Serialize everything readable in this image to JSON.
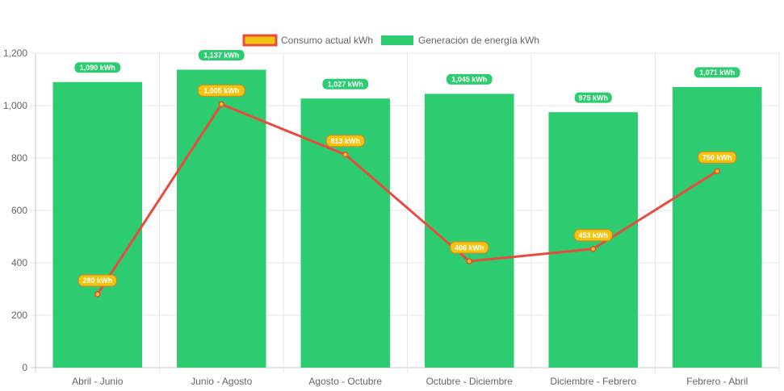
{
  "chart_data": {
    "type": "bar",
    "categories": [
      "Abril - Junio",
      "Junio - Agosto",
      "Agosto - Octubre",
      "Octubre - Diciembre",
      "Diciembre - Febrero",
      "Febrero - Abril"
    ],
    "series": [
      {
        "name": "Consumo actual kWh",
        "type": "line",
        "values": [
          280,
          1005,
          813,
          406,
          453,
          750
        ],
        "labels": [
          "280 kWh",
          "1,005 kWh",
          "813 kWh",
          "406 kWh",
          "453 kWh",
          "750 kWh"
        ],
        "color": "#e74c3c",
        "fill_color": "#f1c40f"
      },
      {
        "name": "Generación de energía kWh",
        "type": "bar",
        "values": [
          1090,
          1137,
          1027,
          1045,
          975,
          1071
        ],
        "labels": [
          "1,090 kWh",
          "1,137 kWh",
          "1,027 kWh",
          "1,045 kWh",
          "975 kWh",
          "1,071 kWh"
        ],
        "color": "#2ecc71"
      }
    ],
    "ylim": [
      0,
      1200
    ],
    "yticks": [
      0,
      200,
      400,
      600,
      800,
      1000,
      1200
    ],
    "ytick_labels": [
      "0",
      "200",
      "400",
      "600",
      "800",
      "1,000",
      "1,200"
    ],
    "grid": true,
    "legend": "top-center",
    "title": "",
    "xlabel": "",
    "ylabel": ""
  }
}
